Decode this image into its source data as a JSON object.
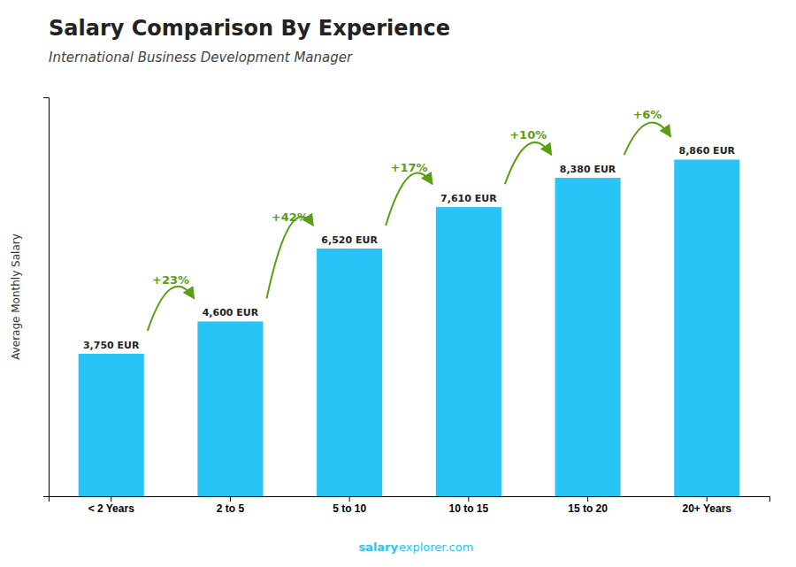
{
  "chart_data": {
    "type": "bar",
    "title": "Salary Comparison By Experience",
    "subtitle": "International Business Development Manager",
    "ylabel": "Average Monthly Salary",
    "categories": [
      "< 2 Years",
      "2 to 5",
      "5 to 10",
      "10 to 15",
      "15 to 20",
      "20+ Years"
    ],
    "values": [
      3750,
      4600,
      6520,
      7610,
      8380,
      8860
    ],
    "value_labels": [
      "3,750 EUR",
      "4,600 EUR",
      "6,520 EUR",
      "7,610 EUR",
      "8,380 EUR",
      "8,860 EUR"
    ],
    "data_labels": true,
    "annotations": [
      "+23%",
      "+42%",
      "+17%",
      "+10%",
      "+6%"
    ],
    "footer": [
      "salary",
      "explorer.com"
    ],
    "color": "#29c4f6",
    "ylim": [
      0,
      10500
    ],
    "tick_labels": "x",
    "grid": false
  }
}
